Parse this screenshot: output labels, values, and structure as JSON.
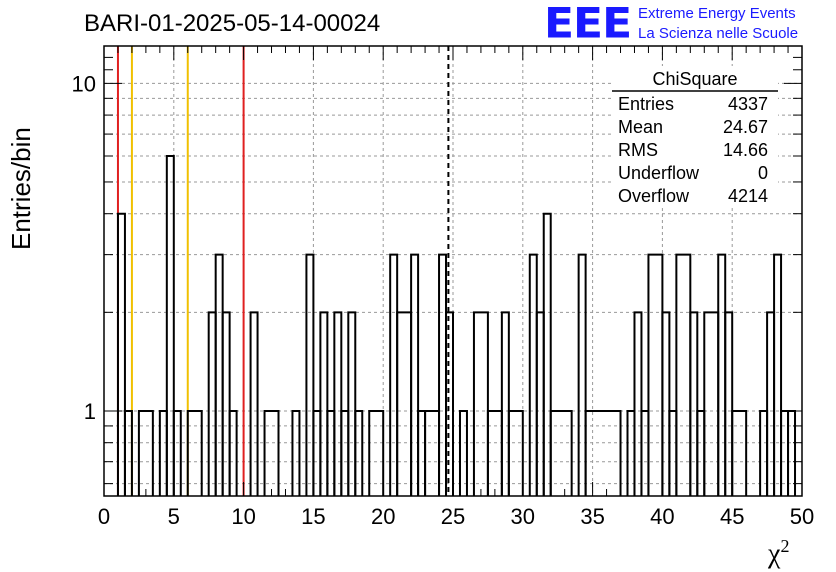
{
  "title": "BARI-01-2025-05-14-00024",
  "logo": {
    "mark": "EEE",
    "line1": "Extreme Energy Events",
    "line2": "La Scienza nelle Scuole",
    "color": "#1a1aff"
  },
  "stats_box": {
    "name": "ChiSquare",
    "rows": [
      {
        "label": "Entries",
        "value": "4337"
      },
      {
        "label": "Mean",
        "value": "24.67"
      },
      {
        "label": "RMS",
        "value": "14.66"
      },
      {
        "label": "Underflow",
        "value": "0"
      },
      {
        "label": "Overflow",
        "value": "4214"
      }
    ]
  },
  "chart_data": {
    "type": "histogram",
    "title": "BARI-01-2025-05-14-00024",
    "xlabel": "χ",
    "xlabel_sup": "2",
    "ylabel": "Entries/bin",
    "xlim": [
      0,
      50
    ],
    "ylim": [
      0.55,
      13
    ],
    "yscale": "log",
    "grid": true,
    "bin_width": 0.5,
    "x_ticks": [
      0,
      5,
      10,
      15,
      20,
      25,
      30,
      35,
      40,
      45,
      50
    ],
    "y_ticks": [
      1,
      10
    ],
    "bins": [
      [
        1.0,
        1.5,
        4
      ],
      [
        1.5,
        2.0,
        1
      ],
      [
        2.5,
        3.5,
        1
      ],
      [
        4.0,
        4.5,
        1
      ],
      [
        4.5,
        5.0,
        6
      ],
      [
        5.0,
        5.5,
        1
      ],
      [
        6.0,
        7.0,
        1
      ],
      [
        7.5,
        8.0,
        2
      ],
      [
        8.0,
        8.5,
        3
      ],
      [
        8.5,
        9.0,
        2
      ],
      [
        9.0,
        9.5,
        1
      ],
      [
        10.5,
        11.0,
        2
      ],
      [
        11.5,
        12.5,
        1
      ],
      [
        13.5,
        14.0,
        1
      ],
      [
        14.5,
        15.0,
        3
      ],
      [
        15.0,
        15.5,
        1
      ],
      [
        15.5,
        16.0,
        2
      ],
      [
        16.0,
        16.5,
        1
      ],
      [
        16.5,
        17.0,
        2
      ],
      [
        17.0,
        17.5,
        1
      ],
      [
        17.5,
        18.0,
        2
      ],
      [
        18.0,
        18.5,
        1
      ],
      [
        19.0,
        20.0,
        1
      ],
      [
        20.5,
        21.0,
        3
      ],
      [
        21.0,
        22.0,
        2
      ],
      [
        22.0,
        22.5,
        3
      ],
      [
        22.5,
        23.0,
        1
      ],
      [
        23.0,
        24.0,
        1
      ],
      [
        24.0,
        24.5,
        3
      ],
      [
        24.5,
        25.0,
        2
      ],
      [
        25.5,
        26.0,
        1
      ],
      [
        26.5,
        27.5,
        2
      ],
      [
        27.5,
        28.5,
        1
      ],
      [
        28.5,
        29.0,
        2
      ],
      [
        29.0,
        30.0,
        1
      ],
      [
        30.5,
        31.0,
        3
      ],
      [
        31.0,
        31.5,
        2
      ],
      [
        31.5,
        32.0,
        4
      ],
      [
        32.0,
        33.5,
        1
      ],
      [
        34.0,
        34.5,
        3
      ],
      [
        34.5,
        37.0,
        1
      ],
      [
        37.5,
        38.0,
        1
      ],
      [
        38.0,
        38.5,
        2
      ],
      [
        38.5,
        39.0,
        1
      ],
      [
        39.0,
        40.0,
        3
      ],
      [
        40.0,
        40.5,
        2
      ],
      [
        40.5,
        41.0,
        1
      ],
      [
        41.0,
        42.0,
        3
      ],
      [
        42.0,
        42.5,
        2
      ],
      [
        42.5,
        43.0,
        1
      ],
      [
        43.0,
        44.0,
        2
      ],
      [
        44.0,
        44.5,
        3
      ],
      [
        44.5,
        45.0,
        2
      ],
      [
        45.0,
        46.0,
        1
      ],
      [
        47.0,
        47.5,
        1
      ],
      [
        47.5,
        48.0,
        2
      ],
      [
        48.0,
        48.5,
        3
      ],
      [
        48.5,
        49.0,
        1
      ],
      [
        49.0,
        49.5,
        1
      ]
    ],
    "reference_lines": [
      {
        "x": 1,
        "color": "#e02020",
        "style": "solid"
      },
      {
        "x": 2,
        "color": "#f0c000",
        "style": "solid"
      },
      {
        "x": 6,
        "color": "#f0c000",
        "style": "solid"
      },
      {
        "x": 10,
        "color": "#e02020",
        "style": "solid"
      },
      {
        "x": 24.67,
        "color": "#000000",
        "style": "dashed"
      }
    ],
    "legend_position": "top-right"
  }
}
